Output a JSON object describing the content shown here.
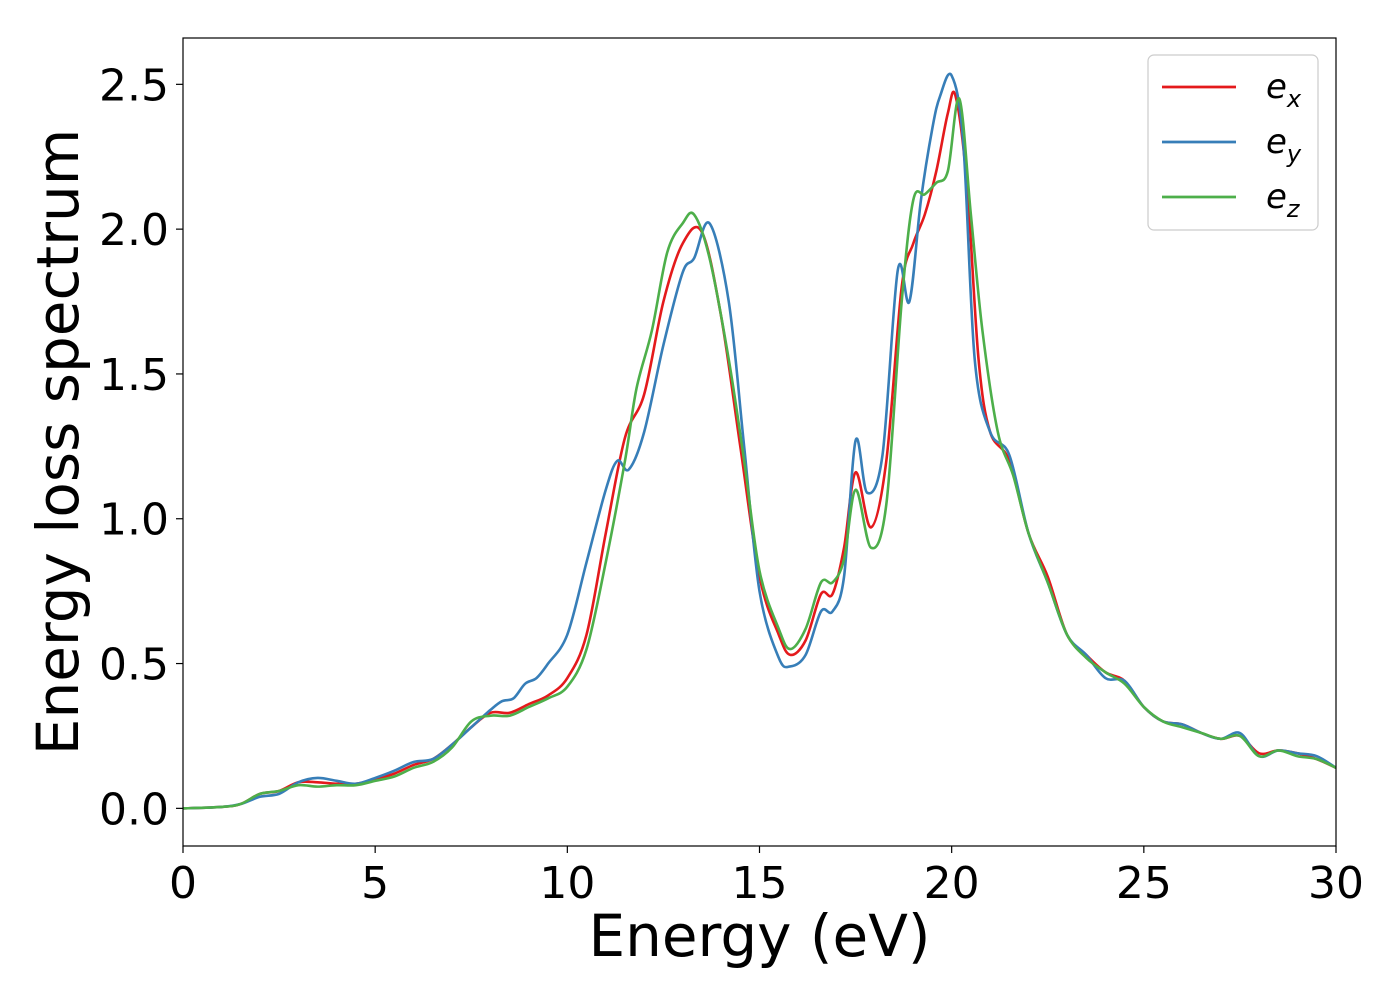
{
  "chart_data": {
    "type": "line",
    "title": "",
    "xlabel": "Energy (eV)",
    "ylabel": "Energy loss spectrum",
    "xlim": [
      0,
      30
    ],
    "ylim": [
      -0.13,
      2.66
    ],
    "xticks": [
      0,
      5,
      10,
      15,
      20,
      25,
      30
    ],
    "xtick_labels": [
      "0",
      "5",
      "10",
      "15",
      "20",
      "25",
      "30"
    ],
    "yticks": [
      0.0,
      0.5,
      1.0,
      1.5,
      2.0,
      2.5
    ],
    "ytick_labels": [
      "0.0",
      "0.5",
      "1.0",
      "1.5",
      "2.0",
      "2.5"
    ],
    "grid": false,
    "legend_position": "top-right",
    "series": [
      {
        "name": "e_x",
        "label_base": "e",
        "label_sub": "x",
        "color": "#e41a1c",
        "x": [
          0,
          1,
          1.5,
          2,
          2.5,
          3,
          3.5,
          4,
          4.5,
          5,
          5.5,
          6,
          6.5,
          7,
          7.5,
          8,
          8.5,
          9,
          9.5,
          10,
          10.5,
          11,
          11.5,
          12,
          12.5,
          13,
          13.5,
          14,
          14.5,
          15,
          15.5,
          15.8,
          16.2,
          16.6,
          16.9,
          17.2,
          17.5,
          17.9,
          18.3,
          18.7,
          19.0,
          19.3,
          19.6,
          19.9,
          20.1,
          20.4,
          20.7,
          21.0,
          21.5,
          22.0,
          22.5,
          23.0,
          23.5,
          24.0,
          24.5,
          25.0,
          25.5,
          26.0,
          26.5,
          27.0,
          27.5,
          28.0,
          28.5,
          29.0,
          29.5,
          30.0
        ],
        "y": [
          0,
          0.005,
          0.015,
          0.05,
          0.06,
          0.09,
          0.09,
          0.085,
          0.085,
          0.1,
          0.12,
          0.15,
          0.17,
          0.22,
          0.28,
          0.33,
          0.33,
          0.36,
          0.39,
          0.45,
          0.6,
          0.95,
          1.28,
          1.43,
          1.75,
          1.95,
          1.99,
          1.7,
          1.25,
          0.8,
          0.6,
          0.53,
          0.58,
          0.74,
          0.74,
          0.9,
          1.16,
          0.97,
          1.2,
          1.8,
          1.95,
          2.05,
          2.2,
          2.4,
          2.46,
          2.15,
          1.55,
          1.3,
          1.2,
          0.95,
          0.8,
          0.6,
          0.53,
          0.47,
          0.44,
          0.35,
          0.3,
          0.29,
          0.26,
          0.24,
          0.25,
          0.19,
          0.2,
          0.19,
          0.17,
          0.14
        ]
      },
      {
        "name": "e_y",
        "label_base": "e",
        "label_sub": "y",
        "color": "#377eb8",
        "x": [
          0,
          1,
          1.5,
          2,
          2.5,
          3,
          3.5,
          4,
          4.5,
          5,
          5.5,
          6,
          6.5,
          7,
          7.5,
          8,
          8.3,
          8.6,
          8.9,
          9.2,
          9.5,
          10,
          10.5,
          11,
          11.3,
          11.6,
          12,
          12.5,
          13,
          13.3,
          13.7,
          14.2,
          14.6,
          15,
          15.5,
          15.8,
          16.2,
          16.6,
          16.9,
          17.2,
          17.5,
          17.8,
          18.2,
          18.6,
          18.9,
          19.2,
          19.5,
          19.7,
          20.0,
          20.3,
          20.6,
          21.0,
          21.5,
          22.0,
          22.5,
          23.0,
          23.5,
          24.0,
          24.5,
          25.0,
          25.5,
          26.0,
          26.5,
          27.0,
          27.5,
          28.0,
          28.5,
          29.0,
          29.5,
          30.0
        ],
        "y": [
          0,
          0.005,
          0.015,
          0.04,
          0.05,
          0.09,
          0.105,
          0.095,
          0.085,
          0.105,
          0.13,
          0.16,
          0.17,
          0.22,
          0.28,
          0.34,
          0.37,
          0.38,
          0.43,
          0.45,
          0.5,
          0.6,
          0.85,
          1.1,
          1.2,
          1.17,
          1.3,
          1.6,
          1.85,
          1.9,
          2.02,
          1.75,
          1.25,
          0.75,
          0.52,
          0.49,
          0.53,
          0.68,
          0.68,
          0.8,
          1.27,
          1.09,
          1.22,
          1.86,
          1.75,
          2.1,
          2.35,
          2.46,
          2.53,
          2.3,
          1.55,
          1.3,
          1.22,
          0.95,
          0.78,
          0.6,
          0.53,
          0.45,
          0.44,
          0.35,
          0.3,
          0.29,
          0.26,
          0.24,
          0.26,
          0.18,
          0.2,
          0.19,
          0.18,
          0.14
        ]
      },
      {
        "name": "e_z",
        "label_base": "e",
        "label_sub": "z",
        "color": "#4daf4a",
        "x": [
          0,
          1,
          1.5,
          2,
          2.5,
          3,
          3.5,
          4,
          4.5,
          5,
          5.5,
          6,
          6.5,
          7,
          7.5,
          8,
          8.5,
          9,
          9.5,
          10,
          10.5,
          11,
          11.5,
          11.8,
          12.2,
          12.6,
          13.0,
          13.3,
          13.7,
          14.2,
          14.6,
          15,
          15.5,
          15.8,
          16.2,
          16.6,
          16.9,
          17.2,
          17.5,
          17.9,
          18.3,
          18.7,
          19.0,
          19.3,
          19.6,
          19.9,
          20.2,
          20.5,
          20.8,
          21.2,
          21.6,
          22.0,
          22.5,
          23.0,
          23.5,
          24.0,
          24.5,
          25.0,
          25.5,
          26.0,
          26.5,
          27.0,
          27.5,
          28.0,
          28.5,
          29.0,
          29.5,
          30.0
        ],
        "y": [
          0,
          0.005,
          0.015,
          0.05,
          0.06,
          0.08,
          0.075,
          0.08,
          0.08,
          0.095,
          0.11,
          0.14,
          0.16,
          0.21,
          0.3,
          0.32,
          0.32,
          0.35,
          0.38,
          0.42,
          0.55,
          0.85,
          1.2,
          1.45,
          1.65,
          1.92,
          2.02,
          2.05,
          1.9,
          1.55,
          1.2,
          0.82,
          0.62,
          0.55,
          0.62,
          0.78,
          0.78,
          0.86,
          1.1,
          0.9,
          1.05,
          1.75,
          2.1,
          2.12,
          2.16,
          2.2,
          2.45,
          2.05,
          1.65,
          1.3,
          1.15,
          0.95,
          0.78,
          0.6,
          0.52,
          0.47,
          0.43,
          0.35,
          0.3,
          0.28,
          0.26,
          0.24,
          0.25,
          0.18,
          0.2,
          0.18,
          0.17,
          0.14
        ]
      }
    ]
  }
}
